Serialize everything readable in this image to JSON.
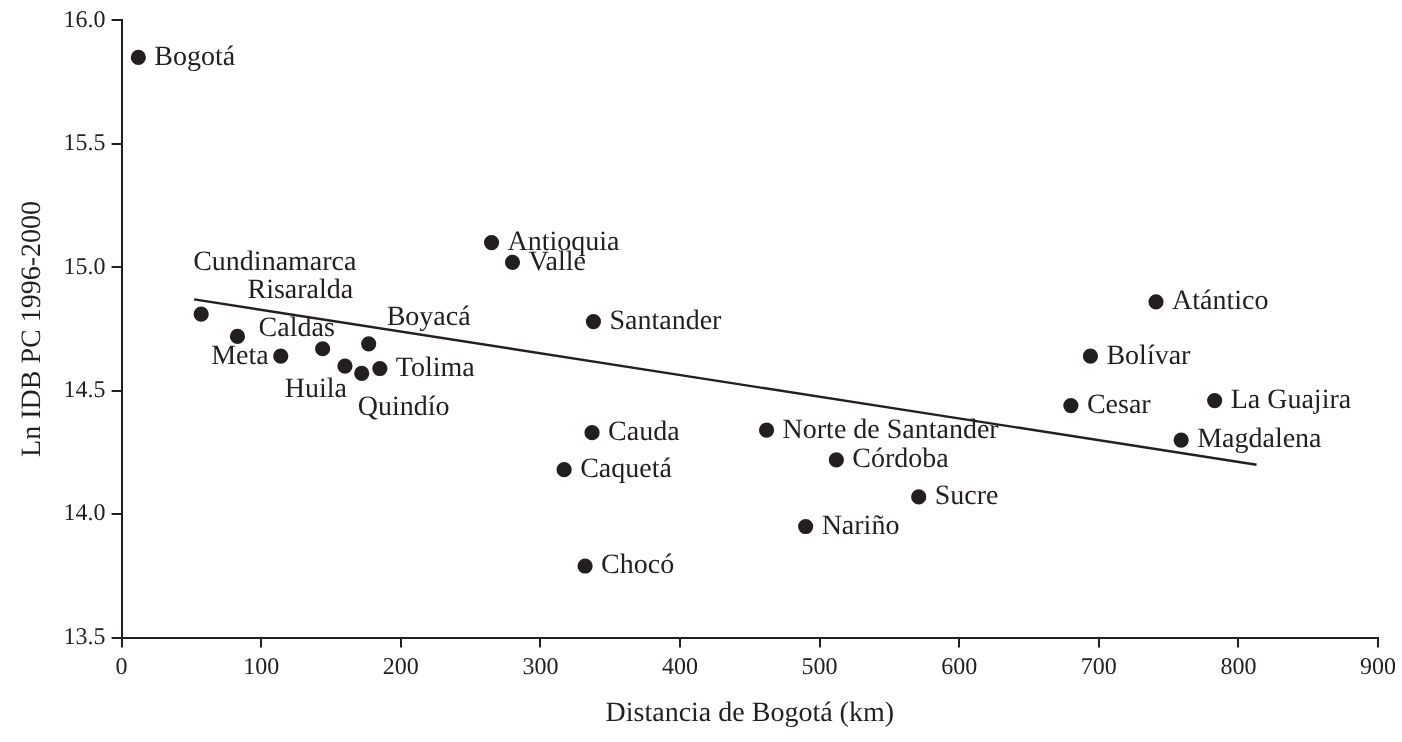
{
  "chart_data": {
    "type": "scatter",
    "xlabel": "Distancia de Bogotá (km)",
    "ylabel": "Ln IDB PC 1996-2000",
    "xlim": [
      0,
      900
    ],
    "xticks": [
      0,
      100,
      200,
      300,
      400,
      500,
      600,
      700,
      800,
      900
    ],
    "ylim": [
      13.5,
      16.0
    ],
    "yticks": [
      {
        "value": 13.5,
        "label": "13.5"
      },
      {
        "value": 14.0,
        "label": "14.0"
      },
      {
        "value": 14.5,
        "label": "14.5"
      },
      {
        "value": 15.0,
        "label": "15.0"
      },
      {
        "value": 15.5,
        "label": "15.5"
      },
      {
        "value": 16.0,
        "label": "16.0"
      }
    ],
    "grid": false,
    "legend": false,
    "series": [
      {
        "marker": "circle",
        "color": "#231f20",
        "x": [
          12,
          57,
          83,
          114,
          144,
          160,
          172,
          177,
          185,
          265,
          280,
          338,
          337,
          317,
          332,
          462,
          512,
          490,
          571,
          680,
          694,
          741,
          783,
          759
        ],
        "values": [
          15.85,
          14.81,
          14.72,
          14.64,
          14.67,
          14.6,
          14.57,
          14.69,
          14.59,
          15.1,
          15.02,
          14.78,
          14.33,
          14.18,
          13.79,
          14.34,
          14.22,
          13.95,
          14.07,
          14.44,
          14.64,
          14.86,
          14.46,
          14.3
        ]
      },
      {
        "type": "line",
        "marker": "none",
        "color": "#231f20",
        "x": [
          52,
          813
        ],
        "values": [
          14.87,
          14.2
        ]
      }
    ],
    "annotations": [
      {
        "text": "Bogotá",
        "x": 12,
        "y": 15.85
      },
      {
        "text": "Cundinamarca",
        "x": 57,
        "y": 14.81
      },
      {
        "text": "Risaralda",
        "x": 83,
        "y": 14.72
      },
      {
        "text": "Meta",
        "x": 114,
        "y": 14.64
      },
      {
        "text": "Caldas",
        "x": 144,
        "y": 14.67
      },
      {
        "text": "Huila",
        "x": 160,
        "y": 14.6
      },
      {
        "text": "Quindío",
        "x": 172,
        "y": 14.57
      },
      {
        "text": "Boyacá",
        "x": 177,
        "y": 14.69
      },
      {
        "text": "Tolima",
        "x": 185,
        "y": 14.59
      },
      {
        "text": "Antioquia",
        "x": 265,
        "y": 15.1
      },
      {
        "text": "Valle",
        "x": 280,
        "y": 15.02
      },
      {
        "text": "Santander",
        "x": 338,
        "y": 14.78
      },
      {
        "text": "Cauda",
        "x": 337,
        "y": 14.33
      },
      {
        "text": "Caquetá",
        "x": 317,
        "y": 14.18
      },
      {
        "text": "Chocó",
        "x": 332,
        "y": 13.79
      },
      {
        "text": "Norte de Santander",
        "x": 462,
        "y": 14.34
      },
      {
        "text": "Córdoba",
        "x": 512,
        "y": 14.22
      },
      {
        "text": "Nariño",
        "x": 490,
        "y": 13.95
      },
      {
        "text": "Sucre",
        "x": 571,
        "y": 14.07
      },
      {
        "text": "Cesar",
        "x": 680,
        "y": 14.44
      },
      {
        "text": "Bolívar",
        "x": 694,
        "y": 14.64
      },
      {
        "text": "Atántico",
        "x": 741,
        "y": 14.86
      },
      {
        "text": "La Guajira",
        "x": 783,
        "y": 14.46
      },
      {
        "text": "Magdalena",
        "x": 759,
        "y": 14.3
      }
    ]
  }
}
